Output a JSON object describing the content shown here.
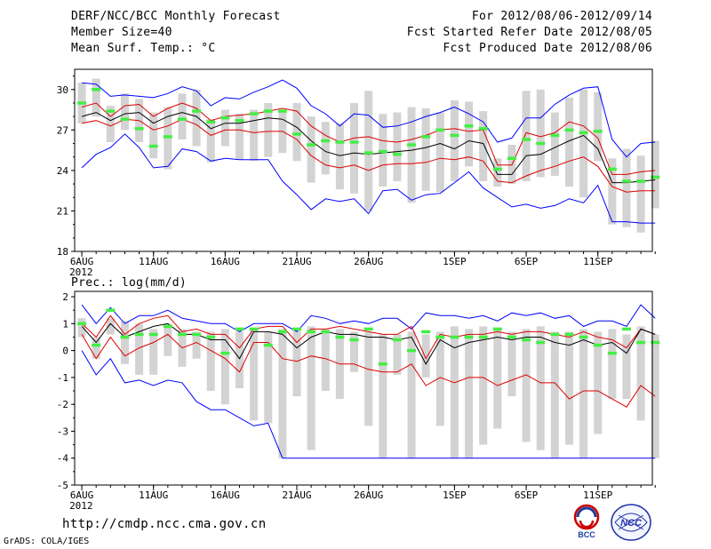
{
  "header": {
    "title": "DERF/NCC/BCC Monthly Forecast",
    "member_size": "Member Size=40",
    "variable": "Mean Surf. Temp.: °C",
    "period": "For 2012/08/06-2012/09/14",
    "refer_date": "Fcst Started Refer Date 2012/08/05",
    "produced_date": "Fcst Produced Date 2012/08/06"
  },
  "footer": {
    "url": "http://cmdp.ncc.cma.gov.cn",
    "grads": "GrADS: COLA/IGES",
    "logo_left": "BCC",
    "logo_right": "NCC"
  },
  "colors": {
    "range": "#0000ff",
    "spread": "#dd0000",
    "mean": "#000000",
    "median": "#44ee44",
    "box": "#d3d3d3"
  },
  "chart_data": [
    {
      "type": "box-line",
      "title": "Mean Surf. Temp.: °C",
      "ylim": [
        18,
        31.5
      ],
      "yticks": [
        18,
        21,
        24,
        27,
        30
      ],
      "xlim": [
        -0.5,
        39.8
      ],
      "xticks": [
        {
          "day": 0,
          "label": "6AUG"
        },
        {
          "day": 5,
          "label": "11AUG"
        },
        {
          "day": 10,
          "label": "16AUG"
        },
        {
          "day": 15,
          "label": "21AUG"
        },
        {
          "day": 20,
          "label": "26AUG"
        },
        {
          "day": 26,
          "label": "1SEP"
        },
        {
          "day": 31,
          "label": "6SEP"
        },
        {
          "day": 36,
          "label": "11SEP"
        }
      ],
      "year_label": "2012",
      "max": [
        30.5,
        30.4,
        29.5,
        29.6,
        29.5,
        29.4,
        29.7,
        30.2,
        29.9,
        28.8,
        29.4,
        29.3,
        29.8,
        30.2,
        30.7,
        30.1,
        28.8,
        28.2,
        27.3,
        28.2,
        28.1,
        27.2,
        27.3,
        27.6,
        28.0,
        28.3,
        28.7,
        28.2,
        27.6,
        26.1,
        26.4,
        27.9,
        27.9,
        28.9,
        29.6,
        30.1,
        30.2,
        26.3,
        25.0,
        26.0,
        26.1
      ],
      "min": [
        24.2,
        25.2,
        25.7,
        26.7,
        25.7,
        24.2,
        24.3,
        25.6,
        25.4,
        24.7,
        24.9,
        24.8,
        24.8,
        24.8,
        23.2,
        22.2,
        21.1,
        21.9,
        21.7,
        21.9,
        20.8,
        22.5,
        22.6,
        21.8,
        22.2,
        22.3,
        23.1,
        23.9,
        22.7,
        22.0,
        21.3,
        21.5,
        21.2,
        21.4,
        21.9,
        21.6,
        22.9,
        20.2,
        20.2,
        20.1,
        20.1
      ],
      "upper": [
        28.7,
        29.0,
        28.0,
        28.8,
        28.9,
        28.0,
        28.6,
        29.0,
        28.6,
        27.7,
        28.0,
        28.1,
        28.2,
        28.4,
        28.6,
        28.4,
        27.3,
        26.6,
        26.1,
        26.4,
        26.5,
        26.2,
        26.1,
        26.3,
        26.6,
        27.0,
        27.1,
        26.9,
        27.0,
        24.4,
        24.4,
        26.8,
        26.5,
        26.8,
        27.6,
        27.3,
        26.4,
        23.7,
        23.7,
        23.9,
        24.0
      ],
      "lower": [
        27.5,
        27.7,
        27.3,
        27.8,
        27.7,
        27.0,
        27.3,
        27.8,
        27.4,
        26.6,
        27.0,
        27.0,
        26.8,
        26.9,
        26.9,
        26.3,
        25.1,
        24.4,
        24.2,
        24.4,
        24.0,
        24.4,
        24.5,
        24.5,
        24.6,
        24.9,
        24.8,
        25.0,
        24.7,
        23.2,
        23.1,
        23.6,
        24.0,
        24.3,
        24.7,
        25.0,
        24.3,
        22.8,
        22.4,
        22.5,
        22.5
      ],
      "mean": [
        28.0,
        28.3,
        27.7,
        28.2,
        28.3,
        27.5,
        28.0,
        28.3,
        28.0,
        27.1,
        27.5,
        27.5,
        27.7,
        27.9,
        27.8,
        27.2,
        26.2,
        25.4,
        25.1,
        25.3,
        25.2,
        25.3,
        25.4,
        25.5,
        25.7,
        26.0,
        25.6,
        26.2,
        26.0,
        23.7,
        23.7,
        25.1,
        25.2,
        25.7,
        26.2,
        26.6,
        25.6,
        23.1,
        23.1,
        23.2,
        23.3
      ],
      "box_top": [
        30.5,
        30.8,
        28.8,
        29.7,
        29.3,
        28.3,
        28.7,
        29.7,
        30.0,
        27.8,
        28.5,
        28.2,
        28.5,
        29.0,
        28.5,
        29.0,
        28.0,
        27.6,
        27.5,
        29.0,
        29.9,
        28.2,
        28.3,
        28.7,
        28.6,
        28.3,
        29.2,
        29.1,
        28.4,
        24.9,
        25.9,
        29.9,
        30.0,
        28.3,
        29.4,
        30.0,
        29.8,
        24.9,
        25.6,
        25.1,
        26.2
      ],
      "box_bot": [
        27.5,
        28.0,
        26.1,
        27.0,
        26.1,
        24.9,
        24.1,
        26.3,
        25.8,
        24.6,
        25.8,
        24.8,
        24.7,
        25.0,
        25.3,
        24.7,
        23.1,
        23.7,
        22.6,
        22.3,
        21.0,
        22.8,
        23.2,
        21.6,
        22.5,
        22.4,
        23.2,
        24.3,
        23.2,
        22.8,
        23.0,
        23.2,
        23.5,
        23.6,
        22.8,
        22.0,
        24.7,
        20.0,
        19.8,
        19.4,
        21.2
      ],
      "median": [
        29.0,
        30.0,
        28.4,
        27.8,
        27.1,
        25.8,
        26.5,
        27.8,
        28.4,
        27.6,
        27.9,
        27.7,
        28.2,
        28.4,
        28.4,
        26.7,
        25.9,
        26.2,
        26.1,
        26.1,
        25.3,
        25.4,
        25.2,
        25.9,
        26.5,
        27.0,
        26.6,
        27.3,
        27.1,
        24.1,
        24.9,
        26.3,
        26.0,
        26.6,
        27.0,
        26.8,
        26.9,
        24.1,
        23.2,
        23.2,
        23.5
      ]
    },
    {
      "type": "box-line",
      "title": "Prec.: log(mm/d)",
      "ylim": [
        -5,
        2.2
      ],
      "yticks": [
        -5,
        -4,
        -3,
        -2,
        -1,
        0,
        1,
        2
      ],
      "xlim": [
        -0.5,
        39.8
      ],
      "xticks": [
        {
          "day": 0,
          "label": "6AUG"
        },
        {
          "day": 5,
          "label": "11AUG"
        },
        {
          "day": 10,
          "label": "16AUG"
        },
        {
          "day": 15,
          "label": "21AUG"
        },
        {
          "day": 20,
          "label": "26AUG"
        },
        {
          "day": 26,
          "label": "1SEP"
        },
        {
          "day": 31,
          "label": "6SEP"
        },
        {
          "day": 36,
          "label": "11SEP"
        }
      ],
      "year_label": "2012",
      "max": [
        1.7,
        1.0,
        1.6,
        1.0,
        1.3,
        1.3,
        1.5,
        1.2,
        1.1,
        1.0,
        1.0,
        0.7,
        1.0,
        1.0,
        1.0,
        0.7,
        1.3,
        1.2,
        1.0,
        1.1,
        1.0,
        1.2,
        1.2,
        0.8,
        1.4,
        1.3,
        1.3,
        1.2,
        1.3,
        1.1,
        1.4,
        1.3,
        1.4,
        1.2,
        1.3,
        0.9,
        1.1,
        1.1,
        0.9,
        1.7,
        1.2
      ],
      "min": [
        0.0,
        -0.9,
        -0.3,
        -1.2,
        -1.1,
        -1.3,
        -1.1,
        -1.2,
        -1.9,
        -2.2,
        -2.2,
        -2.5,
        -2.8,
        -2.7,
        -4.0,
        -4.0,
        -4.0,
        -4.0,
        -4.0,
        -4.0,
        -4.0,
        -4.0,
        -4.0,
        -4.0,
        -4.0,
        -4.0,
        -4.0,
        -4.0,
        -4.0,
        -4.0,
        -4.0,
        -4.0,
        -4.0,
        -4.0,
        -4.0,
        -4.0,
        -4.0,
        -4.0,
        -4.0,
        -4.0,
        -4.0
      ],
      "upper": [
        1.0,
        0.5,
        1.3,
        0.6,
        1.0,
        1.2,
        1.3,
        0.7,
        0.8,
        0.6,
        0.6,
        0.1,
        0.8,
        0.9,
        0.9,
        0.3,
        0.8,
        0.8,
        0.9,
        0.8,
        0.7,
        0.6,
        0.6,
        0.9,
        -0.3,
        0.6,
        0.5,
        0.6,
        0.6,
        0.7,
        0.6,
        0.7,
        0.7,
        0.6,
        0.5,
        0.7,
        0.5,
        0.4,
        0.1,
        0.8,
        0.6
      ],
      "lower": [
        0.6,
        -0.3,
        0.5,
        -0.2,
        0.1,
        0.3,
        0.6,
        0.1,
        0.3,
        0.0,
        -0.3,
        -0.8,
        0.3,
        0.3,
        -0.3,
        -0.4,
        -0.2,
        -0.3,
        -0.5,
        -0.5,
        -0.7,
        -0.8,
        -0.8,
        -0.5,
        -1.3,
        -1.0,
        -1.2,
        -1.0,
        -1.0,
        -1.3,
        -1.1,
        -0.9,
        -1.2,
        -1.2,
        -1.8,
        -1.5,
        -1.5,
        -1.8,
        -2.1,
        -1.3,
        -1.7
      ],
      "mean": [
        0.9,
        0.3,
        1.0,
        0.5,
        0.7,
        0.9,
        1.0,
        0.6,
        0.6,
        0.4,
        0.4,
        -0.3,
        0.7,
        0.7,
        0.6,
        0.1,
        0.5,
        0.7,
        0.6,
        0.6,
        0.5,
        0.5,
        0.4,
        0.5,
        -0.5,
        0.4,
        0.1,
        0.3,
        0.4,
        0.5,
        0.4,
        0.5,
        0.5,
        0.3,
        0.2,
        0.4,
        0.2,
        0.3,
        -0.1,
        0.8,
        0.6
      ],
      "box_top": [
        1.2,
        0.5,
        1.2,
        1.1,
        1.0,
        0.8,
        1.0,
        0.8,
        0.7,
        0.7,
        0.8,
        0.7,
        0.8,
        0.7,
        0.8,
        0.8,
        0.9,
        0.8,
        0.8,
        0.7,
        0.7,
        0.6,
        0.6,
        0.7,
        0.6,
        0.7,
        0.9,
        0.8,
        0.9,
        0.8,
        0.7,
        0.8,
        0.9,
        0.7,
        0.7,
        0.8,
        0.7,
        0.8,
        0.6,
        0.9,
        0.6
      ],
      "box_bot": [
        0.5,
        -0.3,
        0.6,
        -0.5,
        -0.9,
        -0.9,
        -0.2,
        -0.6,
        -0.3,
        -1.5,
        -2.0,
        -1.4,
        -2.6,
        -2.7,
        -4.0,
        -1.7,
        -3.7,
        -1.5,
        -1.8,
        -0.8,
        -2.8,
        -4.0,
        -0.9,
        -4.0,
        -1.0,
        -2.8,
        -4.0,
        -4.0,
        -3.5,
        -2.9,
        -1.7,
        -3.4,
        -3.7,
        -4.0,
        -3.5,
        -4.0,
        -3.1,
        -1.8,
        -1.8,
        -2.6,
        -4.0
      ],
      "median": [
        1.0,
        0.2,
        1.5,
        0.5,
        0.6,
        0.6,
        0.9,
        0.6,
        0.6,
        0.5,
        -0.1,
        0.8,
        0.8,
        0.2,
        0.7,
        0.8,
        0.7,
        0.7,
        0.5,
        0.4,
        0.8,
        -0.5,
        0.4,
        0.0,
        0.7,
        0.5,
        0.5,
        0.5,
        0.5,
        0.8,
        0.5,
        0.4,
        0.3,
        0.6,
        0.6,
        0.5,
        0.2,
        -0.1,
        0.8,
        0.3,
        0.3
      ]
    }
  ]
}
